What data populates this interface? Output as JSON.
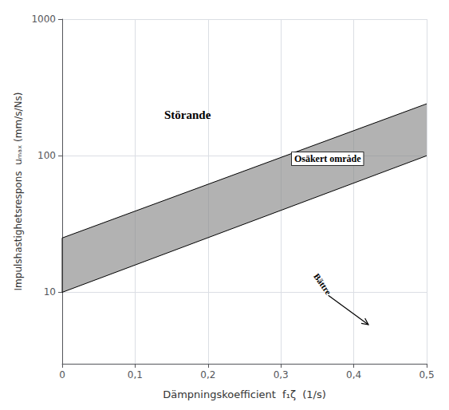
{
  "chart_data": {
    "type": "band",
    "xlabel": "Dämpningskoefficient  f₁ζ  (1/s)",
    "ylabel": "Impulshastighetsrespons  uₘₐₓ (mm/s/Ns)",
    "xlim": [
      0,
      0.5
    ],
    "ylim": [
      3,
      1000
    ],
    "xticks": [
      0,
      {
        "value": 0.1,
        "label": "0,1"
      },
      {
        "value": 0.2,
        "label": "0,2"
      },
      {
        "value": 0.3,
        "label": "0,3"
      },
      {
        "value": 0.4,
        "label": "0,4"
      },
      {
        "value": 0.5,
        "label": "0,5"
      }
    ],
    "yticks": [
      10,
      100,
      1000
    ],
    "log": "y",
    "grid": true,
    "x": [
      0,
      0.5
    ],
    "lower": [
      10.0,
      100.0
    ],
    "upper": [
      25.0,
      240.0
    ],
    "color": "#888888",
    "annotations": [
      {
        "text": "Störande",
        "x": 0.14,
        "y": 200
      },
      {
        "text": "Osäkert område",
        "x": 0.315,
        "y": 95
      },
      {
        "text": "Bättre",
        "x": 0.365,
        "y": 11.5
      }
    ],
    "arrows": [
      {
        "x": 0.365,
        "y": 9.5,
        "x_end": 0.42,
        "y_end": 5.8
      }
    ]
  }
}
